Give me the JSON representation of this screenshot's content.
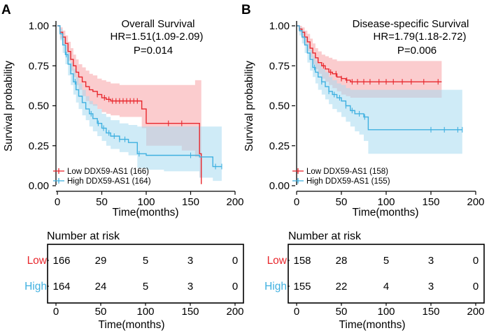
{
  "chart_data": [
    {
      "panel": "A",
      "type": "line",
      "title": "Overall Survival",
      "hr_text": "HR=1.51(1.09-2.09)",
      "p_text": "P=0.014",
      "xlabel": "Time(months)",
      "ylabel": "Survival probability",
      "xlim": [
        0,
        200
      ],
      "ylim": [
        0,
        1
      ],
      "xticks": [
        0,
        50,
        100,
        150,
        200
      ],
      "xtick_labels": [
        "0",
        "50",
        "100",
        "150",
        "200"
      ],
      "yticks": [
        0,
        0.25,
        0.5,
        0.75,
        1
      ],
      "ytick_labels": [
        "0.00",
        "0.25",
        "0.50",
        "0.75",
        "1.00"
      ],
      "series": [
        {
          "name": "Low DDX59-AS1 (166)",
          "color": "#e8272d",
          "fill": "#f7a3a6",
          "x": [
            0,
            3,
            6,
            9,
            12,
            15,
            18,
            21,
            24,
            28,
            32,
            36,
            40,
            45,
            50,
            55,
            60,
            70,
            80,
            90,
            95,
            100,
            120,
            140,
            155,
            160,
            162
          ],
          "y": [
            1,
            0.96,
            0.93,
            0.89,
            0.84,
            0.79,
            0.75,
            0.71,
            0.68,
            0.65,
            0.62,
            0.6,
            0.59,
            0.57,
            0.55,
            0.54,
            0.53,
            0.53,
            0.53,
            0.53,
            0.48,
            0.39,
            0.39,
            0.39,
            0.39,
            0.2,
            0.01
          ],
          "upper": [
            1,
            0.99,
            0.97,
            0.94,
            0.9,
            0.86,
            0.82,
            0.79,
            0.76,
            0.74,
            0.72,
            0.7,
            0.69,
            0.67,
            0.66,
            0.65,
            0.64,
            0.63,
            0.63,
            0.63,
            0.63,
            0.63,
            0.63,
            0.63,
            0.66,
            0.66,
            0.66
          ],
          "lower": [
            1,
            0.92,
            0.88,
            0.83,
            0.78,
            0.72,
            0.68,
            0.63,
            0.6,
            0.56,
            0.53,
            0.51,
            0.5,
            0.48,
            0.46,
            0.45,
            0.44,
            0.43,
            0.43,
            0.43,
            0.36,
            0.25,
            0.25,
            0.22,
            0.18,
            0.05,
            0.01
          ],
          "censors": [
            45,
            53,
            58,
            62,
            66,
            70,
            74,
            78,
            82,
            86,
            90,
            125,
            140
          ]
        },
        {
          "name": "High DDX59-AS1 (164)",
          "color": "#3fb0e0",
          "fill": "#a8daf0",
          "x": [
            0,
            3,
            6,
            9,
            12,
            15,
            18,
            21,
            24,
            28,
            32,
            36,
            40,
            45,
            50,
            55,
            60,
            70,
            80,
            90,
            100,
            120,
            140,
            160,
            175,
            185
          ],
          "y": [
            1,
            0.95,
            0.88,
            0.82,
            0.76,
            0.7,
            0.65,
            0.6,
            0.56,
            0.52,
            0.48,
            0.45,
            0.42,
            0.39,
            0.36,
            0.33,
            0.31,
            0.29,
            0.27,
            0.2,
            0.19,
            0.19,
            0.19,
            0.18,
            0.12,
            0.12
          ],
          "upper": [
            1,
            0.98,
            0.93,
            0.88,
            0.83,
            0.77,
            0.73,
            0.68,
            0.64,
            0.6,
            0.56,
            0.53,
            0.51,
            0.48,
            0.45,
            0.43,
            0.41,
            0.39,
            0.38,
            0.37,
            0.37,
            0.37,
            0.37,
            0.37,
            0.37,
            0.37
          ],
          "lower": [
            1,
            0.91,
            0.83,
            0.76,
            0.69,
            0.63,
            0.57,
            0.52,
            0.48,
            0.44,
            0.41,
            0.37,
            0.34,
            0.31,
            0.28,
            0.25,
            0.23,
            0.21,
            0.19,
            0.11,
            0.1,
            0.09,
            0.09,
            0.05,
            0.03,
            0.03
          ],
          "censors": [
            10,
            20,
            38,
            46,
            52,
            58,
            64,
            70,
            76,
            92,
            150,
            178,
            185
          ]
        }
      ],
      "risk_table": {
        "title": "Number at risk",
        "xlabel": "Time(months)",
        "times": [
          0,
          50,
          100,
          150,
          200
        ],
        "time_labels": [
          "0",
          "50",
          "100",
          "150",
          "200"
        ],
        "groups": [
          {
            "label": "Low",
            "color": "#e8272d",
            "counts": [
              "166",
              "29",
              "5",
              "3",
              "0"
            ]
          },
          {
            "label": "High",
            "color": "#3fb0e0",
            "counts": [
              "164",
              "24",
              "5",
              "3",
              "0"
            ]
          }
        ]
      }
    },
    {
      "panel": "B",
      "type": "line",
      "title": "Disease-specific Survival",
      "hr_text": "HR=1.79(1.18-2.72)",
      "p_text": "P=0.006",
      "xlabel": "Time(months)",
      "ylabel": "Survival probability",
      "xlim": [
        0,
        200
      ],
      "ylim": [
        0,
        1
      ],
      "xticks": [
        0,
        50,
        100,
        150,
        200
      ],
      "xtick_labels": [
        "0",
        "50",
        "100",
        "150",
        "200"
      ],
      "yticks": [
        0,
        0.25,
        0.5,
        0.75,
        1
      ],
      "ytick_labels": [
        "0.00",
        "0.25",
        "0.50",
        "0.75",
        "1.00"
      ],
      "series": [
        {
          "name": "Low DDX59-AS1 (158)",
          "color": "#e8272d",
          "fill": "#f7a3a6",
          "x": [
            0,
            3,
            6,
            9,
            12,
            15,
            18,
            21,
            24,
            28,
            32,
            36,
            40,
            45,
            50,
            55,
            60,
            80,
            100,
            130,
            162
          ],
          "y": [
            1,
            0.98,
            0.96,
            0.93,
            0.9,
            0.86,
            0.83,
            0.8,
            0.77,
            0.75,
            0.73,
            0.71,
            0.7,
            0.68,
            0.67,
            0.66,
            0.65,
            0.65,
            0.65,
            0.65,
            0.65
          ],
          "upper": [
            1,
            1,
            0.99,
            0.97,
            0.95,
            0.92,
            0.89,
            0.86,
            0.84,
            0.82,
            0.81,
            0.8,
            0.79,
            0.78,
            0.78,
            0.78,
            0.78,
            0.78,
            0.78,
            0.78,
            0.78
          ],
          "lower": [
            1,
            0.96,
            0.92,
            0.88,
            0.84,
            0.8,
            0.76,
            0.73,
            0.7,
            0.67,
            0.65,
            0.63,
            0.61,
            0.59,
            0.57,
            0.56,
            0.55,
            0.55,
            0.55,
            0.55,
            0.55
          ],
          "censors": [
            30,
            38,
            44,
            50,
            56,
            62,
            68,
            75,
            82,
            92,
            100,
            108,
            118,
            128,
            142,
            158
          ]
        },
        {
          "name": "High DDX59-AS1 (155)",
          "color": "#3fb0e0",
          "fill": "#a8daf0",
          "x": [
            0,
            3,
            6,
            9,
            12,
            15,
            18,
            21,
            24,
            28,
            32,
            36,
            40,
            45,
            50,
            55,
            60,
            65,
            70,
            75,
            80,
            100,
            130,
            160,
            185
          ],
          "y": [
            1,
            0.97,
            0.93,
            0.88,
            0.83,
            0.79,
            0.74,
            0.71,
            0.68,
            0.65,
            0.62,
            0.59,
            0.57,
            0.55,
            0.53,
            0.5,
            0.47,
            0.45,
            0.45,
            0.43,
            0.35,
            0.35,
            0.35,
            0.35,
            0.35
          ],
          "upper": [
            1,
            0.99,
            0.97,
            0.93,
            0.89,
            0.85,
            0.81,
            0.78,
            0.76,
            0.73,
            0.71,
            0.68,
            0.66,
            0.64,
            0.63,
            0.61,
            0.6,
            0.6,
            0.6,
            0.6,
            0.6,
            0.6,
            0.6,
            0.6,
            0.6
          ],
          "lower": [
            1,
            0.94,
            0.89,
            0.83,
            0.77,
            0.72,
            0.68,
            0.64,
            0.6,
            0.57,
            0.54,
            0.51,
            0.48,
            0.46,
            0.43,
            0.4,
            0.37,
            0.34,
            0.32,
            0.28,
            0.2,
            0.2,
            0.2,
            0.2,
            0.2
          ],
          "censors": [
            20,
            28,
            36,
            42,
            48,
            55,
            62,
            70,
            76,
            150,
            165,
            180,
            185
          ]
        }
      ],
      "risk_table": {
        "title": "Number at risk",
        "xlabel": "Time(months)",
        "times": [
          0,
          50,
          100,
          150,
          200
        ],
        "time_labels": [
          "0",
          "50",
          "100",
          "150",
          "200"
        ],
        "groups": [
          {
            "label": "Low",
            "color": "#e8272d",
            "counts": [
              "158",
              "28",
              "5",
              "3",
              "0"
            ]
          },
          {
            "label": "High",
            "color": "#3fb0e0",
            "counts": [
              "155",
              "22",
              "4",
              "3",
              "0"
            ]
          }
        ]
      }
    }
  ]
}
